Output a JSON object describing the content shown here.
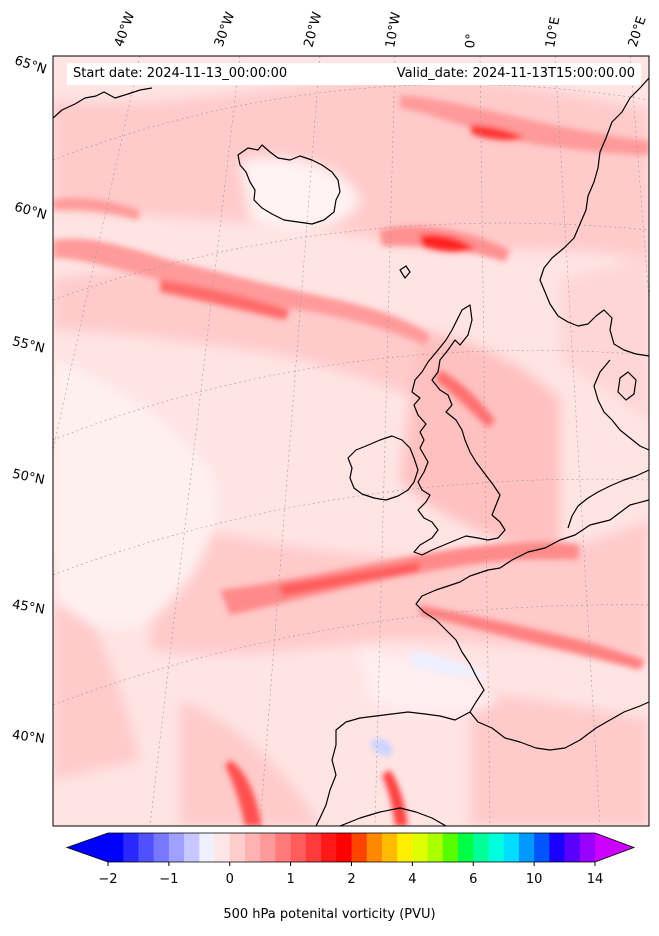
{
  "header": {
    "start_label": "Start date: 2024-11-13_00:00:00",
    "valid_label": "Valid_date: 2024-11-13T15:00:00.00"
  },
  "map": {
    "projection": "polar stereographic (north)",
    "region": "North-east Atlantic and western Europe",
    "coastline_color": "#000000",
    "gridline_style": "dotted grey",
    "longitude_labels": [
      "40°W",
      "30°W",
      "20°W",
      "10°W",
      "0°",
      "10°E",
      "20°E"
    ],
    "latitude_labels": [
      "65°N",
      "60°N",
      "55°N",
      "50°N",
      "45°N",
      "40°N"
    ],
    "field": "500 hPa potential vorticity",
    "shading_colors": [
      "#ffe8e8",
      "#ffcccc",
      "#ffb0b0",
      "#ff8a8a",
      "#ff6464",
      "#ff3c3c",
      "#ff1a1a",
      "#eef0ff",
      "#d6dcff"
    ]
  },
  "colorbar": {
    "label": "500 hPa potenital vorticity (PVU)",
    "tick_labels": [
      "−2",
      "−1",
      "0",
      "1",
      "2",
      "4",
      "6",
      "10",
      "14"
    ],
    "tick_values": [
      -2,
      -1,
      0,
      1,
      2,
      4,
      6,
      10,
      14
    ],
    "extend": "both",
    "colors": [
      "#0000ff",
      "#2828ff",
      "#5050ff",
      "#7878ff",
      "#a0a0ff",
      "#c8c8ff",
      "#f0f0ff",
      "#ffe6e6",
      "#ffcccc",
      "#ffb2b2",
      "#ff9898",
      "#ff7a7a",
      "#ff5c5c",
      "#ff3a3a",
      "#ff1818",
      "#ff0000",
      "#ff4400",
      "#ff8800",
      "#ffbb00",
      "#ffee00",
      "#ddff00",
      "#aaff00",
      "#55ff00",
      "#00ff44",
      "#00ff99",
      "#00ffdd",
      "#00ddff",
      "#0099ff",
      "#0055ff",
      "#1a00ff",
      "#5a00ff",
      "#9a00ff"
    ],
    "min_color": "#0000ff",
    "max_color": "#cc00ff"
  }
}
